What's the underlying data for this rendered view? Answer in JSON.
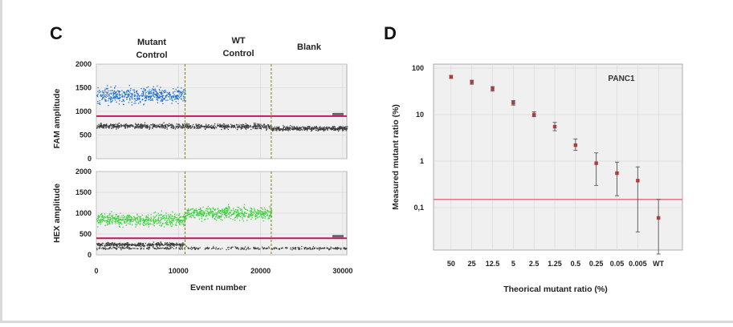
{
  "colors": {
    "fam_positive": "#1f6fd6",
    "hex_positive": "#3ad13a",
    "negative_droplets": "#3a3a3a",
    "threshold": "#c2185b",
    "plot_bg": "#f0f0f0",
    "grid": "#d2d2d2",
    "divider": "#8a8a1a",
    "mean_marker": "#b23a3a",
    "lod_line": "#e07a90"
  },
  "chart_data": [
    {
      "type": "scatter",
      "panel_label": "C",
      "section_headers": [
        {
          "label_line1": "Mutant",
          "label_line2": "Control"
        },
        {
          "label_line1": "WT",
          "label_line2": "Control"
        },
        {
          "label_line1": "Blank",
          "label_line2": ""
        }
      ],
      "xlabel": "Event number",
      "x_ticks": [
        "0",
        "10000",
        "20000",
        "30000"
      ],
      "xlim": [
        0,
        30500
      ],
      "dividers_at": [
        10800,
        21300
      ],
      "subplots": [
        {
          "name": "FAM",
          "ylabel": "FAM amplitude",
          "y_ticks": [
            "0",
            "500",
            "1000",
            "1500",
            "2000"
          ],
          "ylim": [
            0,
            2000
          ],
          "threshold": 900,
          "clusters": [
            {
              "x_range": [
                0,
                10800
              ],
              "y_center": 1350,
              "y_spread": 170,
              "kind": "positive"
            },
            {
              "x_range": [
                0,
                10800
              ],
              "y_center": 700,
              "y_spread": 55,
              "kind": "negative"
            },
            {
              "x_range": [
                10800,
                21300
              ],
              "y_center": 690,
              "y_spread": 55,
              "kind": "negative"
            },
            {
              "x_range": [
                21300,
                30500
              ],
              "y_center": 650,
              "y_spread": 50,
              "kind": "negative"
            }
          ]
        },
        {
          "name": "HEX",
          "ylabel": "HEX amplitude",
          "y_ticks": [
            "0",
            "500",
            "1000",
            "1500",
            "2000"
          ],
          "ylim": [
            0,
            2000
          ],
          "threshold": 400,
          "clusters": [
            {
              "x_range": [
                0,
                10800
              ],
              "y_center": 860,
              "y_spread": 160,
              "kind": "positive"
            },
            {
              "x_range": [
                10800,
                21300
              ],
              "y_center": 1010,
              "y_spread": 160,
              "kind": "positive"
            },
            {
              "x_range": [
                0,
                10800
              ],
              "y_center": 260,
              "y_spread": 45,
              "kind": "negative"
            },
            {
              "x_range": [
                0,
                30500
              ],
              "y_center": 170,
              "y_spread": 35,
              "kind": "negative"
            }
          ]
        }
      ]
    },
    {
      "type": "scatter",
      "panel_label": "D",
      "annotation": "PANC1",
      "xlabel": "Theorical mutant ratio (%)",
      "ylabel": "Measured mutant ratio (%)",
      "y_scale": "log",
      "ylim": [
        0.01,
        100
      ],
      "y_ticks": [
        "100",
        "10",
        "1",
        "0,1"
      ],
      "lod_line": 0.15,
      "categories": [
        "50",
        "25",
        "12.5",
        "5",
        "2.5",
        "1.25",
        "0.5",
        "0.25",
        "0.05",
        "0.005",
        "WT"
      ],
      "values": [
        65,
        50,
        36,
        18,
        10,
        5.5,
        2.2,
        0.9,
        0.55,
        0.38,
        0.06
      ],
      "error_low": [
        60,
        45,
        32,
        16,
        9,
        4.5,
        1.7,
        0.3,
        0.18,
        0.03,
        0.01
      ],
      "error_high": [
        70,
        55,
        40,
        20,
        11.5,
        6.8,
        3.0,
        1.5,
        0.95,
        0.75,
        0.15
      ]
    }
  ]
}
